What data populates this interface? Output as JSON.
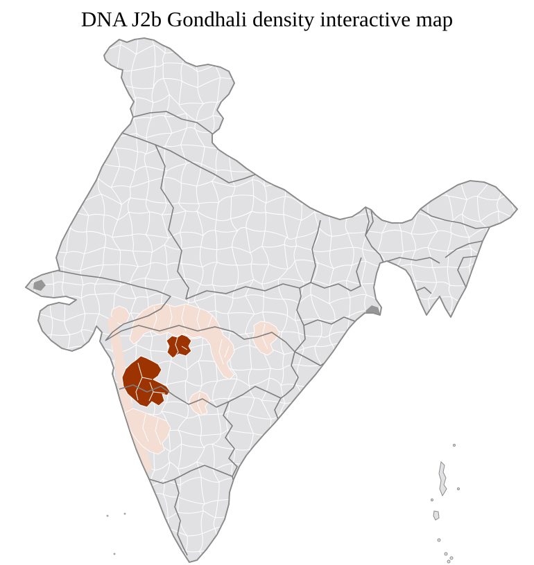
{
  "title": "DNA J2b Gondhali density interactive map",
  "map": {
    "label": "india-district-density-map",
    "colors": {
      "page_background": "#ffffff",
      "land": "#e1e1e3",
      "district_border": "#ffffff",
      "state_border": "#7d7d7d",
      "coastline": "#8b8b8b",
      "density_high": "#9d3301",
      "density_low": "#f4ded3",
      "tidal_delta": "#8e8e8e"
    },
    "density_levels": [
      {
        "name": "high",
        "color": "#9d3301"
      },
      {
        "name": "low",
        "color": "#f4ded3"
      },
      {
        "name": "none",
        "color": "#e1e1e3"
      }
    ]
  }
}
